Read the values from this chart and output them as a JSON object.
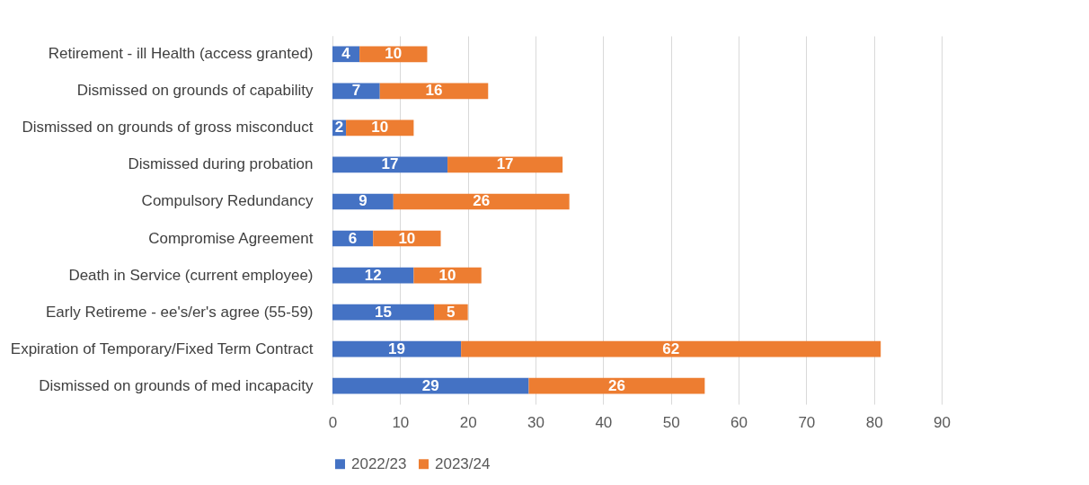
{
  "chart_data": {
    "type": "bar",
    "orientation": "horizontal",
    "stacked": true,
    "categories": [
      "Retirement - ill Health (access granted)",
      "Dismissed on grounds of capability",
      "Dismissed on grounds of gross misconduct",
      "Dismissed during probation",
      "Compulsory Redundancy",
      "Compromise Agreement",
      "Death in Service (current employee)",
      "Early Retireme - ee's/er's agree (55-59)",
      "Expiration of Temporary/Fixed Term Contract",
      "Dismissed on grounds of med incapacity"
    ],
    "series": [
      {
        "name": "2022/23",
        "color": "#4472c4",
        "values": [
          4,
          7,
          2,
          17,
          9,
          6,
          12,
          15,
          19,
          29
        ]
      },
      {
        "name": "2023/24",
        "color": "#ed7d31",
        "values": [
          10,
          16,
          10,
          17,
          26,
          10,
          10,
          5,
          62,
          26
        ]
      }
    ],
    "xlim": [
      0,
      90
    ],
    "xticks": [
      0,
      10,
      20,
      30,
      40,
      50,
      60,
      70,
      80,
      90
    ],
    "grid": "x",
    "legend": "bottom",
    "data_labels": true
  }
}
